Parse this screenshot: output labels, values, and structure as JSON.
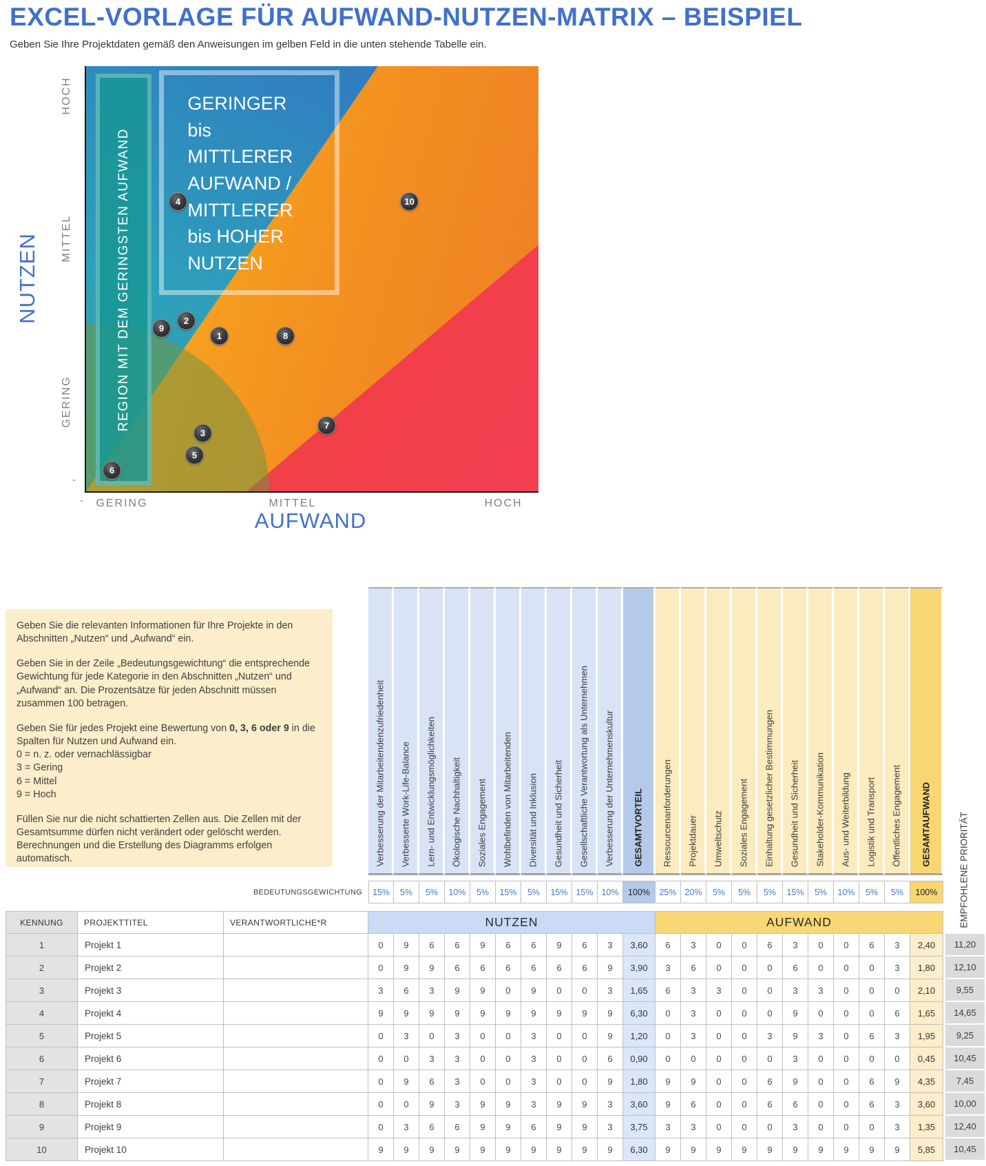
{
  "header": {
    "title": "EXCEL-VORLAGE FÜR AUFWAND-NUTZEN-MATRIX – BEISPIEL",
    "subtitle": "Geben Sie Ihre Projektdaten gemäß den Anweisungen im gelben Feld in die unten stehende Tabelle ein."
  },
  "chart_data": {
    "type": "scatter",
    "x_label": "AUFWAND",
    "y_label": "NUTZEN",
    "x_ticks": [
      "GERING",
      "MITTEL",
      "HOCH"
    ],
    "y_ticks": [
      "GERING",
      "MITTEL",
      "HOCH"
    ],
    "zero_tick": "-",
    "region_band_label": "REGION MIT DEM GERINGSTEN AUFWAND",
    "region_box_label": "GERINGER bis MITTLERER AUFWAND / MITTLERER bis HOHER NUTZEN",
    "colors": {
      "accent_blue": "#4170cb",
      "region_low_effort_band": "#179694",
      "region_good": "#2f82c6",
      "region_mid": "#f39020",
      "region_bad": "#ee4036",
      "region_low_low": "#719442",
      "marker": "#3a3a3e"
    },
    "points": [
      {
        "label": "1",
        "x": 2.4,
        "y": 3.6
      },
      {
        "label": "2",
        "x": 1.8,
        "y": 3.9
      },
      {
        "label": "3",
        "x": 2.1,
        "y": 1.65
      },
      {
        "label": "4",
        "x": 1.65,
        "y": 6.3
      },
      {
        "label": "5",
        "x": 1.95,
        "y": 1.2
      },
      {
        "label": "6",
        "x": 0.45,
        "y": 0.9
      },
      {
        "label": "7",
        "x": 4.35,
        "y": 1.8
      },
      {
        "label": "8",
        "x": 3.6,
        "y": 3.6
      },
      {
        "label": "9",
        "x": 1.35,
        "y": 3.75
      },
      {
        "label": "10",
        "x": 5.85,
        "y": 6.3
      }
    ]
  },
  "instructions": {
    "p1": "Geben Sie die relevanten Informationen für Ihre Projekte in den Abschnitten „Nutzen“ und „Aufwand“ ein.",
    "p2": "Geben Sie in der Zeile „Bedeutungsgewichtung“ die entsprechende Gewichtung für jede Kategorie in den Abschnitten „Nutzen“ und „Aufwand“ an.  Die Prozentsätze für jeden Abschnitt müssen zusammen 100 betragen.",
    "p3_pre": "Geben Sie für jedes Projekt eine Bewertung von ",
    "p3_bold": "0, 3, 6 oder 9",
    "p3_post": " in die Spalten für Nutzen und Aufwand ein.",
    "scale_lines": [
      "0 = n. z. oder vernachlässigbar",
      "3 = Gering",
      "6 = Mittel",
      "9 = Hoch"
    ],
    "p5": "Füllen Sie nur die nicht schattierten Zellen aus. Die Zellen mit der Gesamtsumme dürfen nicht verändert oder gelöscht werden. Berechnungen und die Erstellung des Diagramms erfolgen automatisch."
  },
  "table": {
    "weight_row_label": "BEDEUTUNGSGEWICHTUNG",
    "left_headers": [
      "KENNUNG",
      "PROJEKTTITEL",
      "VERANTWORTLICHE*R"
    ],
    "priority_label": "EMPFOHLENE PRIORITÄT",
    "nutzen": {
      "banner": "NUTZEN",
      "columns": [
        "Verbesserung der Mitarbeitendenzufriedenheit",
        "Verbesserte Work-Life-Balance",
        "Lern- und Entwicklungsmöglichkeiten",
        "Ökologische Nachhaltigkeit",
        "Soziales Engagement",
        "Wohlbefinden von Mitarbeitenden",
        "Diversität und Inklusion",
        "Gesundheit und Sicherheit",
        "Gesellschaftliche Verantwortung als Unternehmen",
        "Verbesserung der Unternehmenskultur"
      ],
      "total_label": "GESAMTVORTEIL",
      "weights": [
        "15%",
        "5%",
        "5%",
        "10%",
        "5%",
        "15%",
        "5%",
        "15%",
        "15%",
        "10%"
      ],
      "total_weight": "100%"
    },
    "aufwand": {
      "banner": "AUFWAND",
      "columns": [
        "Ressourcenanforderungen",
        "Projektdauer",
        "Umweltschutz",
        "Soziales Engagement",
        "Einhaltung gesetzlicher Bestimmungen",
        "Gesundheit und Sicherheit",
        "Stakeholder-Kommunikation",
        "Aus- und Weiterbildung",
        "Logistik und Transport",
        "Öffentliches Engagement"
      ],
      "total_label": "GESAMTAUFWAND",
      "weights": [
        "25%",
        "20%",
        "5%",
        "5%",
        "5%",
        "15%",
        "5%",
        "10%",
        "5%",
        "5%"
      ],
      "total_weight": "100%"
    },
    "rows": [
      {
        "id": "1",
        "title": "Projekt 1",
        "responsible": "",
        "nutzen": [
          "0",
          "9",
          "6",
          "6",
          "9",
          "6",
          "6",
          "9",
          "6",
          "3"
        ],
        "nutzen_total": "3,60",
        "aufwand": [
          "6",
          "3",
          "0",
          "0",
          "6",
          "3",
          "0",
          "0",
          "6",
          "3"
        ],
        "aufwand_total": "2,40",
        "priority": "11,20"
      },
      {
        "id": "2",
        "title": "Projekt 2",
        "responsible": "",
        "nutzen": [
          "0",
          "9",
          "9",
          "6",
          "6",
          "6",
          "6",
          "6",
          "6",
          "9"
        ],
        "nutzen_total": "3,90",
        "aufwand": [
          "3",
          "6",
          "0",
          "0",
          "0",
          "6",
          "0",
          "0",
          "0",
          "3"
        ],
        "aufwand_total": "1,80",
        "priority": "12,10"
      },
      {
        "id": "3",
        "title": "Projekt 3",
        "responsible": "",
        "nutzen": [
          "3",
          "6",
          "3",
          "9",
          "9",
          "0",
          "9",
          "0",
          "0",
          "3"
        ],
        "nutzen_total": "1,65",
        "aufwand": [
          "6",
          "3",
          "3",
          "0",
          "0",
          "3",
          "3",
          "0",
          "0",
          "0"
        ],
        "aufwand_total": "2,10",
        "priority": "9,55"
      },
      {
        "id": "4",
        "title": "Projekt 4",
        "responsible": "",
        "nutzen": [
          "9",
          "9",
          "9",
          "9",
          "9",
          "9",
          "9",
          "9",
          "9",
          "9"
        ],
        "nutzen_total": "6,30",
        "aufwand": [
          "0",
          "3",
          "0",
          "0",
          "0",
          "9",
          "0",
          "0",
          "0",
          "6"
        ],
        "aufwand_total": "1,65",
        "priority": "14,65"
      },
      {
        "id": "5",
        "title": "Projekt 5",
        "responsible": "",
        "nutzen": [
          "0",
          "3",
          "0",
          "3",
          "0",
          "0",
          "3",
          "0",
          "0",
          "9"
        ],
        "nutzen_total": "1,20",
        "aufwand": [
          "0",
          "3",
          "0",
          "0",
          "3",
          "9",
          "3",
          "0",
          "6",
          "3"
        ],
        "aufwand_total": "1,95",
        "priority": "9,25"
      },
      {
        "id": "6",
        "title": "Projekt 6",
        "responsible": "",
        "nutzen": [
          "0",
          "0",
          "3",
          "3",
          "0",
          "0",
          "3",
          "0",
          "0",
          "6"
        ],
        "nutzen_total": "0,90",
        "aufwand": [
          "0",
          "0",
          "0",
          "0",
          "0",
          "3",
          "0",
          "0",
          "0",
          "0"
        ],
        "aufwand_total": "0,45",
        "priority": "10,45"
      },
      {
        "id": "7",
        "title": "Projekt 7",
        "responsible": "",
        "nutzen": [
          "0",
          "9",
          "6",
          "3",
          "0",
          "0",
          "3",
          "0",
          "0",
          "9"
        ],
        "nutzen_total": "1,80",
        "aufwand": [
          "9",
          "9",
          "0",
          "0",
          "6",
          "9",
          "0",
          "0",
          "6",
          "9"
        ],
        "aufwand_total": "4,35",
        "priority": "7,45"
      },
      {
        "id": "8",
        "title": "Projekt 8",
        "responsible": "",
        "nutzen": [
          "0",
          "0",
          "9",
          "3",
          "9",
          "9",
          "3",
          "9",
          "9",
          "3"
        ],
        "nutzen_total": "3,60",
        "aufwand": [
          "9",
          "6",
          "0",
          "0",
          "6",
          "6",
          "0",
          "0",
          "6",
          "3"
        ],
        "aufwand_total": "3,60",
        "priority": "10,00"
      },
      {
        "id": "9",
        "title": "Projekt 9",
        "responsible": "",
        "nutzen": [
          "0",
          "3",
          "6",
          "6",
          "9",
          "9",
          "6",
          "9",
          "9",
          "3"
        ],
        "nutzen_total": "3,75",
        "aufwand": [
          "3",
          "3",
          "0",
          "0",
          "0",
          "3",
          "0",
          "0",
          "0",
          "3"
        ],
        "aufwand_total": "1,35",
        "priority": "12,40"
      },
      {
        "id": "10",
        "title": "Projekt 10",
        "responsible": "",
        "nutzen": [
          "9",
          "9",
          "9",
          "9",
          "9",
          "9",
          "9",
          "9",
          "9",
          "9"
        ],
        "nutzen_total": "6,30",
        "aufwand": [
          "9",
          "9",
          "9",
          "9",
          "9",
          "9",
          "9",
          "9",
          "9",
          "9"
        ],
        "aufwand_total": "5,85",
        "priority": "10,45"
      }
    ]
  }
}
